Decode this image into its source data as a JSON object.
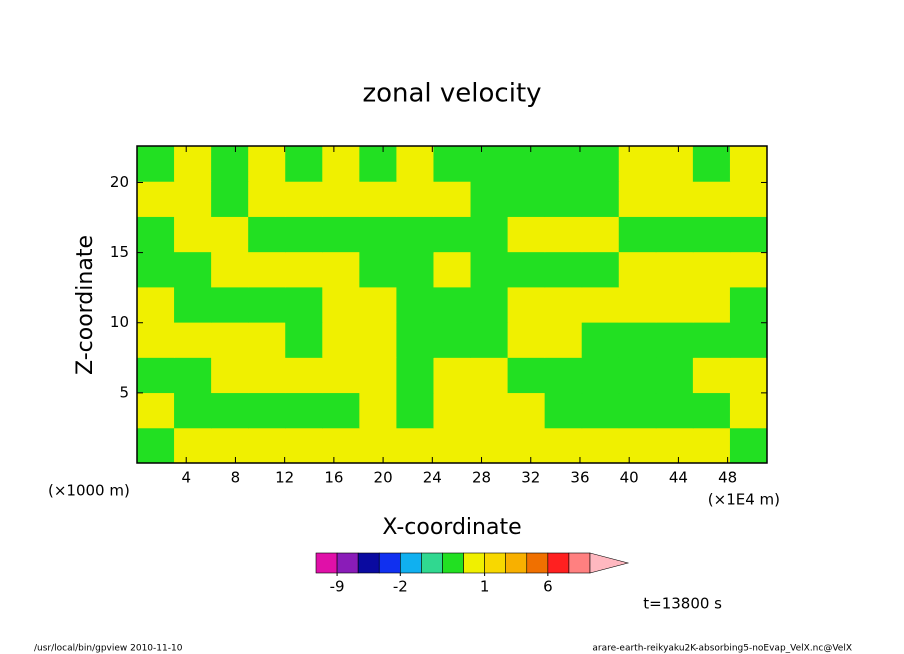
{
  "chart_data": {
    "type": "contour",
    "title": "zonal velocity",
    "xlabel": "X-coordinate",
    "ylabel": "Z-coordinate",
    "x_unit_left": "(×1000 m)",
    "x_unit_right": "(×1E4 m)",
    "time_label": "t=13800 s",
    "footer_left": "/usr/local/bin/gpview  2010-11-10",
    "footer_right": "arare-earth-reikyaku2K-absorbing5-noEvap_VelX.nc@VelX",
    "xlim": [
      0,
      51.2
    ],
    "ylim": [
      0,
      22.6
    ],
    "xticks": [
      4,
      8,
      12,
      16,
      20,
      24,
      28,
      32,
      36,
      40,
      44,
      48
    ],
    "yticks": [
      5,
      10,
      15,
      20
    ],
    "z": [
      [
        -0.3,
        0.5,
        0.5,
        0.5,
        0.5,
        0.5,
        0.5,
        0.5,
        0.5,
        0.5,
        0.5,
        0.5,
        0.5,
        0.5,
        0.5,
        0.5,
        -0.3
      ],
      [
        0.5,
        -0.3,
        -0.3,
        -0.3,
        -0.3,
        -0.3,
        0.5,
        -0.3,
        0.5,
        0.5,
        0.5,
        -0.3,
        -0.3,
        -0.3,
        -0.3,
        -0.3,
        0.5
      ],
      [
        -0.3,
        -0.3,
        0.5,
        0.5,
        0.5,
        0.5,
        0.5,
        -0.3,
        0.5,
        0.5,
        -0.3,
        -0.3,
        -0.3,
        -0.3,
        -0.3,
        0.5,
        0.5
      ],
      [
        0.5,
        0.5,
        0.5,
        0.5,
        -0.3,
        0.5,
        0.5,
        -0.3,
        -0.3,
        -0.3,
        0.5,
        0.5,
        -0.3,
        -0.3,
        -0.3,
        -0.3,
        -0.3
      ],
      [
        0.5,
        -0.3,
        -0.3,
        -0.3,
        -0.3,
        0.5,
        0.5,
        -0.3,
        -0.3,
        -0.3,
        0.5,
        0.5,
        0.5,
        0.5,
        0.5,
        0.5,
        -0.3
      ],
      [
        -0.3,
        -0.3,
        0.5,
        0.5,
        0.5,
        0.5,
        -0.3,
        -0.3,
        0.5,
        -0.3,
        -0.3,
        -0.3,
        -0.3,
        0.5,
        0.5,
        0.5,
        0.5
      ],
      [
        -0.3,
        0.5,
        0.5,
        -0.3,
        -0.3,
        -0.3,
        -0.3,
        -0.3,
        -0.3,
        -0.3,
        0.5,
        0.5,
        0.5,
        -0.3,
        -0.3,
        -0.3,
        -0.3
      ],
      [
        0.5,
        0.5,
        -0.3,
        0.5,
        0.5,
        0.5,
        0.5,
        0.5,
        0.5,
        -0.3,
        -0.3,
        -0.3,
        -0.3,
        0.5,
        0.5,
        0.5,
        0.5
      ],
      [
        -0.3,
        0.5,
        -0.3,
        0.5,
        -0.3,
        0.5,
        -0.3,
        0.5,
        -0.3,
        -0.3,
        -0.3,
        -0.3,
        -0.3,
        0.5,
        0.5,
        -0.3,
        0.5
      ]
    ],
    "colorbar": {
      "levels": [
        -12,
        -9,
        -6,
        -3,
        -2,
        -1,
        -0.5,
        0,
        1,
        2,
        3,
        6,
        9,
        12
      ],
      "colors": [
        "#e010a8",
        "#8a1cb8",
        "#0a0aa0",
        "#1030f0",
        "#10b0f0",
        "#30d890",
        "#22e022",
        "#f0f000",
        "#f8d800",
        "#f8b000",
        "#f07000",
        "#ff2020",
        "#ff8080"
      ],
      "extend_color": "#ffb8c0",
      "ticks": [
        -9,
        -2,
        1,
        6
      ]
    }
  }
}
